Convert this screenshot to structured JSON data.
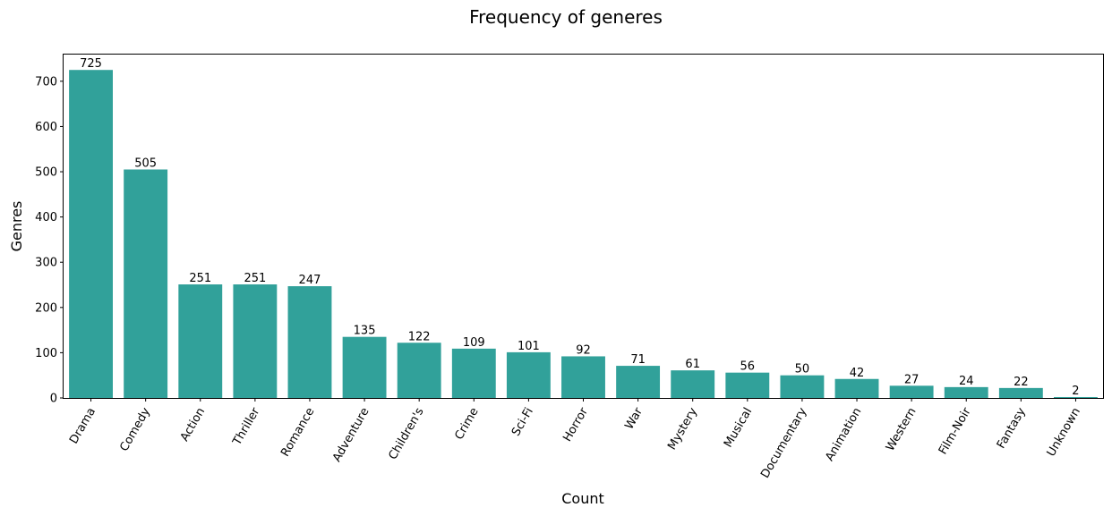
{
  "chart_data": {
    "type": "bar",
    "title": "Frequency of generes",
    "xlabel": "Count",
    "ylabel": "Genres",
    "categories": [
      "Drama",
      "Comedy",
      "Action",
      "Thriller",
      "Romance",
      "Adventure",
      "Children's",
      "Crime",
      "Sci-Fi",
      "Horror",
      "War",
      "Mystery",
      "Musical",
      "Documentary",
      "Animation",
      "Western",
      "Film-Noir",
      "Fantasy",
      "Unknown"
    ],
    "values": [
      725,
      505,
      251,
      251,
      247,
      135,
      122,
      109,
      101,
      92,
      71,
      61,
      56,
      50,
      42,
      27,
      24,
      22,
      2
    ],
    "data_labels": [
      "725",
      "505",
      "251",
      "251",
      "247",
      "135",
      "122",
      "109",
      "101",
      "92",
      "71",
      "61",
      "56",
      "50",
      "42",
      "27",
      "24",
      "22",
      "2"
    ],
    "ylim": [
      0,
      761
    ],
    "yticks": [
      0,
      100,
      200,
      300,
      400,
      500,
      600,
      700
    ],
    "bar_color": "#31a19a",
    "grid": false,
    "legend": "none"
  }
}
